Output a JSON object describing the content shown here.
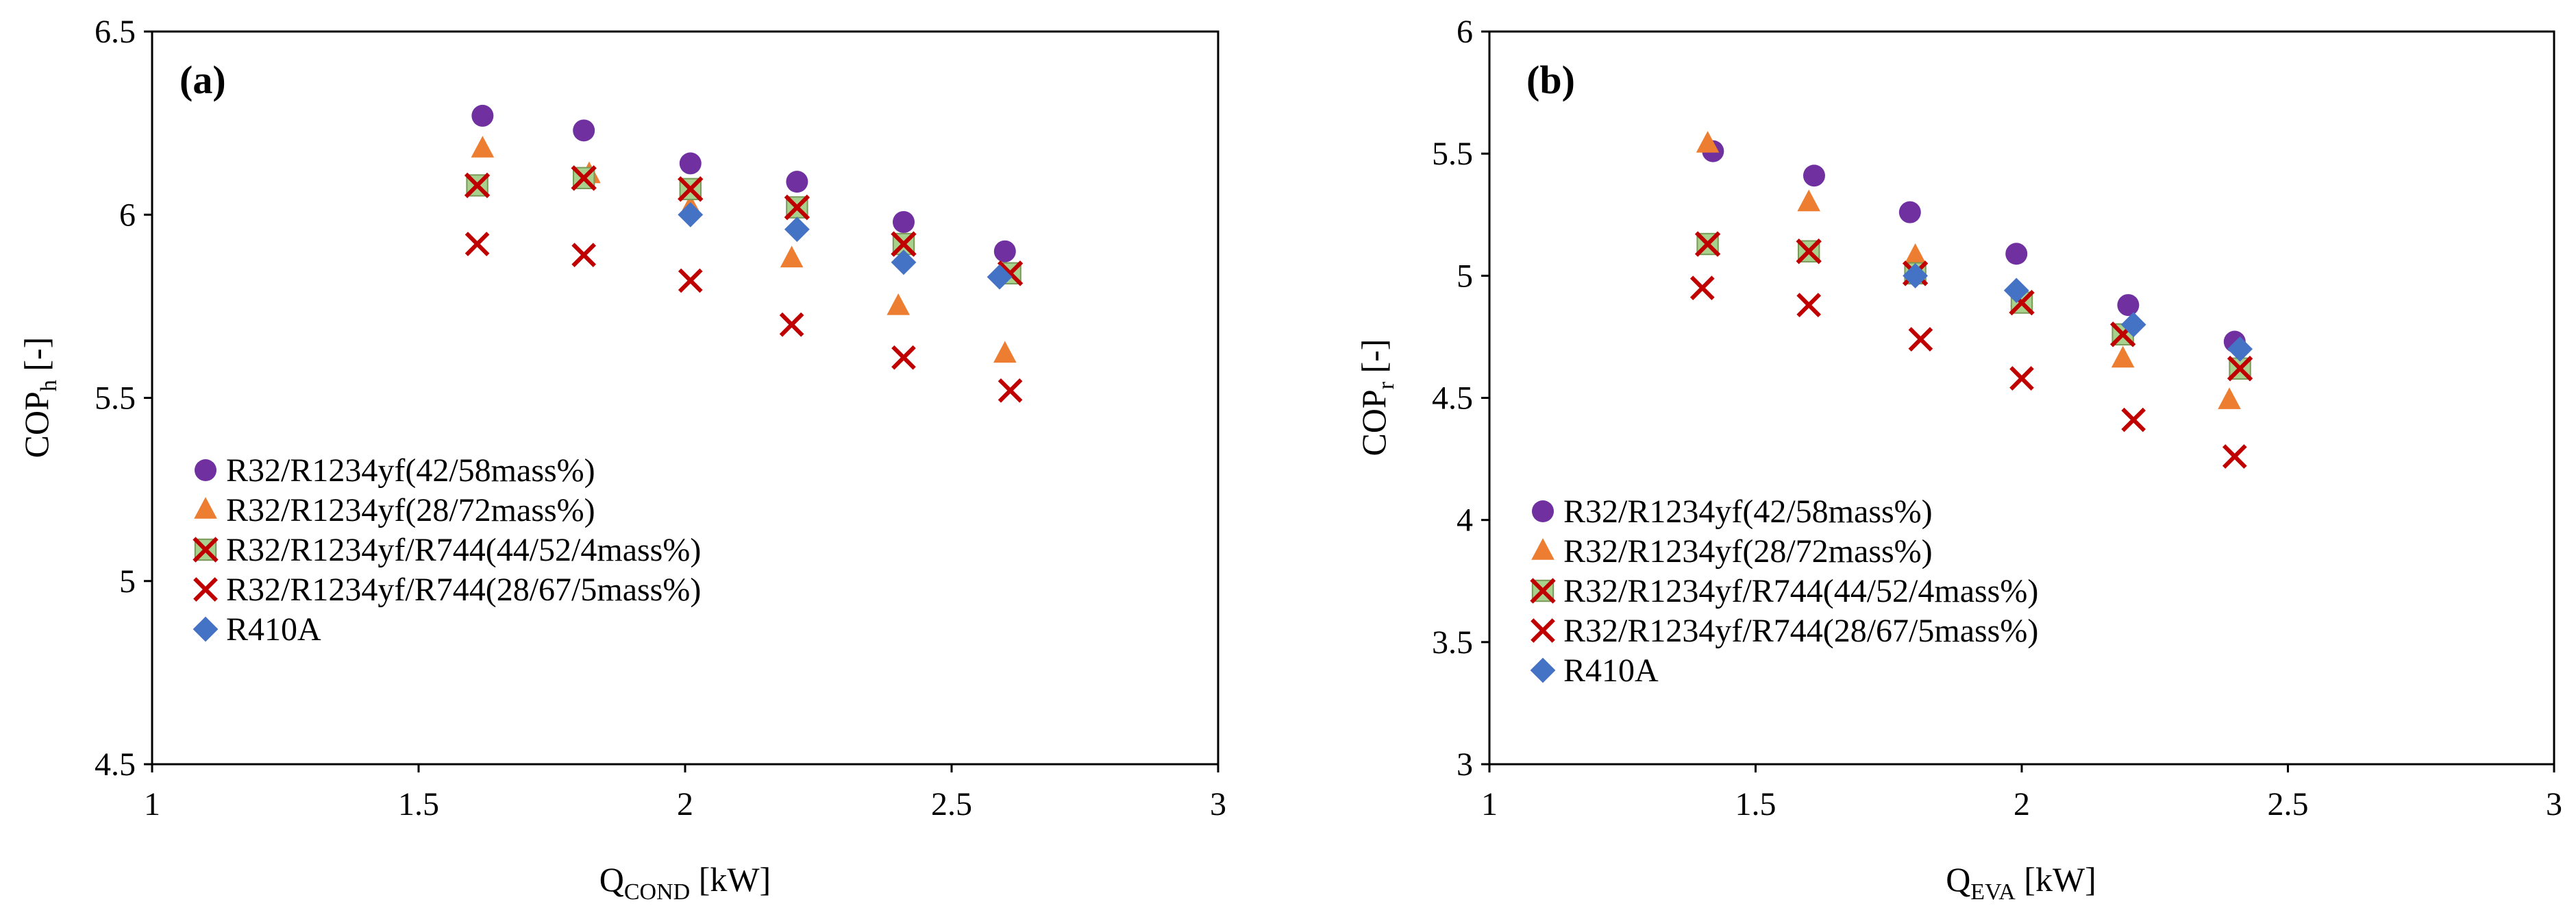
{
  "colors": {
    "purple": "#7030A0",
    "orange": "#ED7D31",
    "green_fill": "#A9D18E",
    "red": "#C00000",
    "blue": "#4472C4"
  },
  "legend_entries": [
    {
      "label": "R32/R1234yf(42/58mass%)",
      "marker": "circle",
      "color_key": "purple"
    },
    {
      "label": "R32/R1234yf(28/72mass%)",
      "marker": "triangle",
      "color_key": "orange"
    },
    {
      "label": "R32/R1234yf/R744(44/52/4mass%)",
      "marker": "boxed-cross",
      "color_key": "green_fill"
    },
    {
      "label": "R32/R1234yf/R744(28/67/5mass%)",
      "marker": "cross",
      "color_key": "red"
    },
    {
      "label": "R410A",
      "marker": "diamond",
      "color_key": "blue"
    }
  ],
  "chart_data": [
    {
      "type": "scatter",
      "panel_label": "(a)",
      "xlabel_main": "Q",
      "xlabel_sub": "COND",
      "xlabel_unit": " [kW]",
      "ylabel_main": "COP",
      "ylabel_sub": "h",
      "ylabel_unit": " [-]",
      "xlim": [
        1,
        3
      ],
      "ylim": [
        4.5,
        6.5
      ],
      "xticks": [
        1,
        1.5,
        2,
        2.5,
        3
      ],
      "xtick_labels": [
        "1",
        "1.5",
        "2",
        "2.5",
        "3"
      ],
      "yticks": [
        4.5,
        5,
        5.5,
        6,
        6.5
      ],
      "ytick_labels": [
        "4.5",
        "5",
        "5.5",
        "6",
        "6.5"
      ],
      "legend_position": "bottom-left",
      "series": [
        {
          "name": "R32/R1234yf(42/58mass%)",
          "x": [
            1.62,
            1.81,
            2.01,
            2.21,
            2.41,
            2.6
          ],
          "y": [
            6.27,
            6.23,
            6.14,
            6.09,
            5.98,
            5.9
          ]
        },
        {
          "name": "R32/R1234yf(28/72mass%)",
          "x": [
            1.62,
            1.82,
            2.01,
            2.2,
            2.4,
            2.6
          ],
          "y": [
            6.18,
            6.11,
            6.02,
            5.88,
            5.75,
            5.62
          ]
        },
        {
          "name": "R32/R1234yf/R744(44/52/4mass%)",
          "x": [
            1.61,
            1.81,
            2.01,
            2.21,
            2.41,
            2.61
          ],
          "y": [
            6.08,
            6.1,
            6.07,
            6.02,
            5.92,
            5.84
          ]
        },
        {
          "name": "R32/R1234yf/R744(28/67/5mass%)",
          "x": [
            1.61,
            1.81,
            2.01,
            2.2,
            2.41,
            2.61
          ],
          "y": [
            5.92,
            5.89,
            5.82,
            5.7,
            5.61,
            5.52
          ]
        },
        {
          "name": "R410A",
          "x": [
            2.01,
            2.21,
            2.41,
            2.59
          ],
          "y": [
            6.0,
            5.96,
            5.87,
            5.83
          ]
        }
      ]
    },
    {
      "type": "scatter",
      "panel_label": "(b)",
      "xlabel_main": "Q",
      "xlabel_sub": "EVA",
      "xlabel_unit": " [kW]",
      "ylabel_main": "COP",
      "ylabel_sub": "r",
      "ylabel_unit": " [-]",
      "xlim": [
        1,
        3
      ],
      "ylim": [
        3,
        6
      ],
      "xticks": [
        1,
        1.5,
        2,
        2.5,
        3
      ],
      "xtick_labels": [
        "1",
        "1.5",
        "2",
        "2.5",
        "3"
      ],
      "yticks": [
        3,
        3.5,
        4,
        4.5,
        5,
        5.5,
        6
      ],
      "ytick_labels": [
        "3",
        "3.5",
        "4",
        "4.5",
        "5",
        "5.5",
        "6"
      ],
      "legend_position": "bottom-left",
      "series": [
        {
          "name": "R32/R1234yf(42/58mass%)",
          "x": [
            1.42,
            1.61,
            1.79,
            1.99,
            2.2,
            2.4
          ],
          "y": [
            5.51,
            5.41,
            5.26,
            5.09,
            4.88,
            4.73
          ]
        },
        {
          "name": "R32/R1234yf(28/72mass%)",
          "x": [
            1.41,
            1.6,
            1.8,
            2.0,
            2.19,
            2.39
          ],
          "y": [
            5.54,
            5.3,
            5.08,
            4.91,
            4.66,
            4.49
          ]
        },
        {
          "name": "R32/R1234yf/R744(44/52/4mass%)",
          "x": [
            1.41,
            1.6,
            1.8,
            2.0,
            2.19,
            2.41
          ],
          "y": [
            5.13,
            5.1,
            5.01,
            4.89,
            4.76,
            4.62
          ]
        },
        {
          "name": "R32/R1234yf/R744(28/67/5mass%)",
          "x": [
            1.4,
            1.6,
            1.81,
            2.0,
            2.21,
            2.4
          ],
          "y": [
            4.95,
            4.88,
            4.74,
            4.58,
            4.41,
            4.26
          ]
        },
        {
          "name": "R410A",
          "x": [
            1.8,
            1.99,
            2.21,
            2.41
          ],
          "y": [
            5.0,
            4.94,
            4.8,
            4.7
          ]
        }
      ]
    }
  ]
}
